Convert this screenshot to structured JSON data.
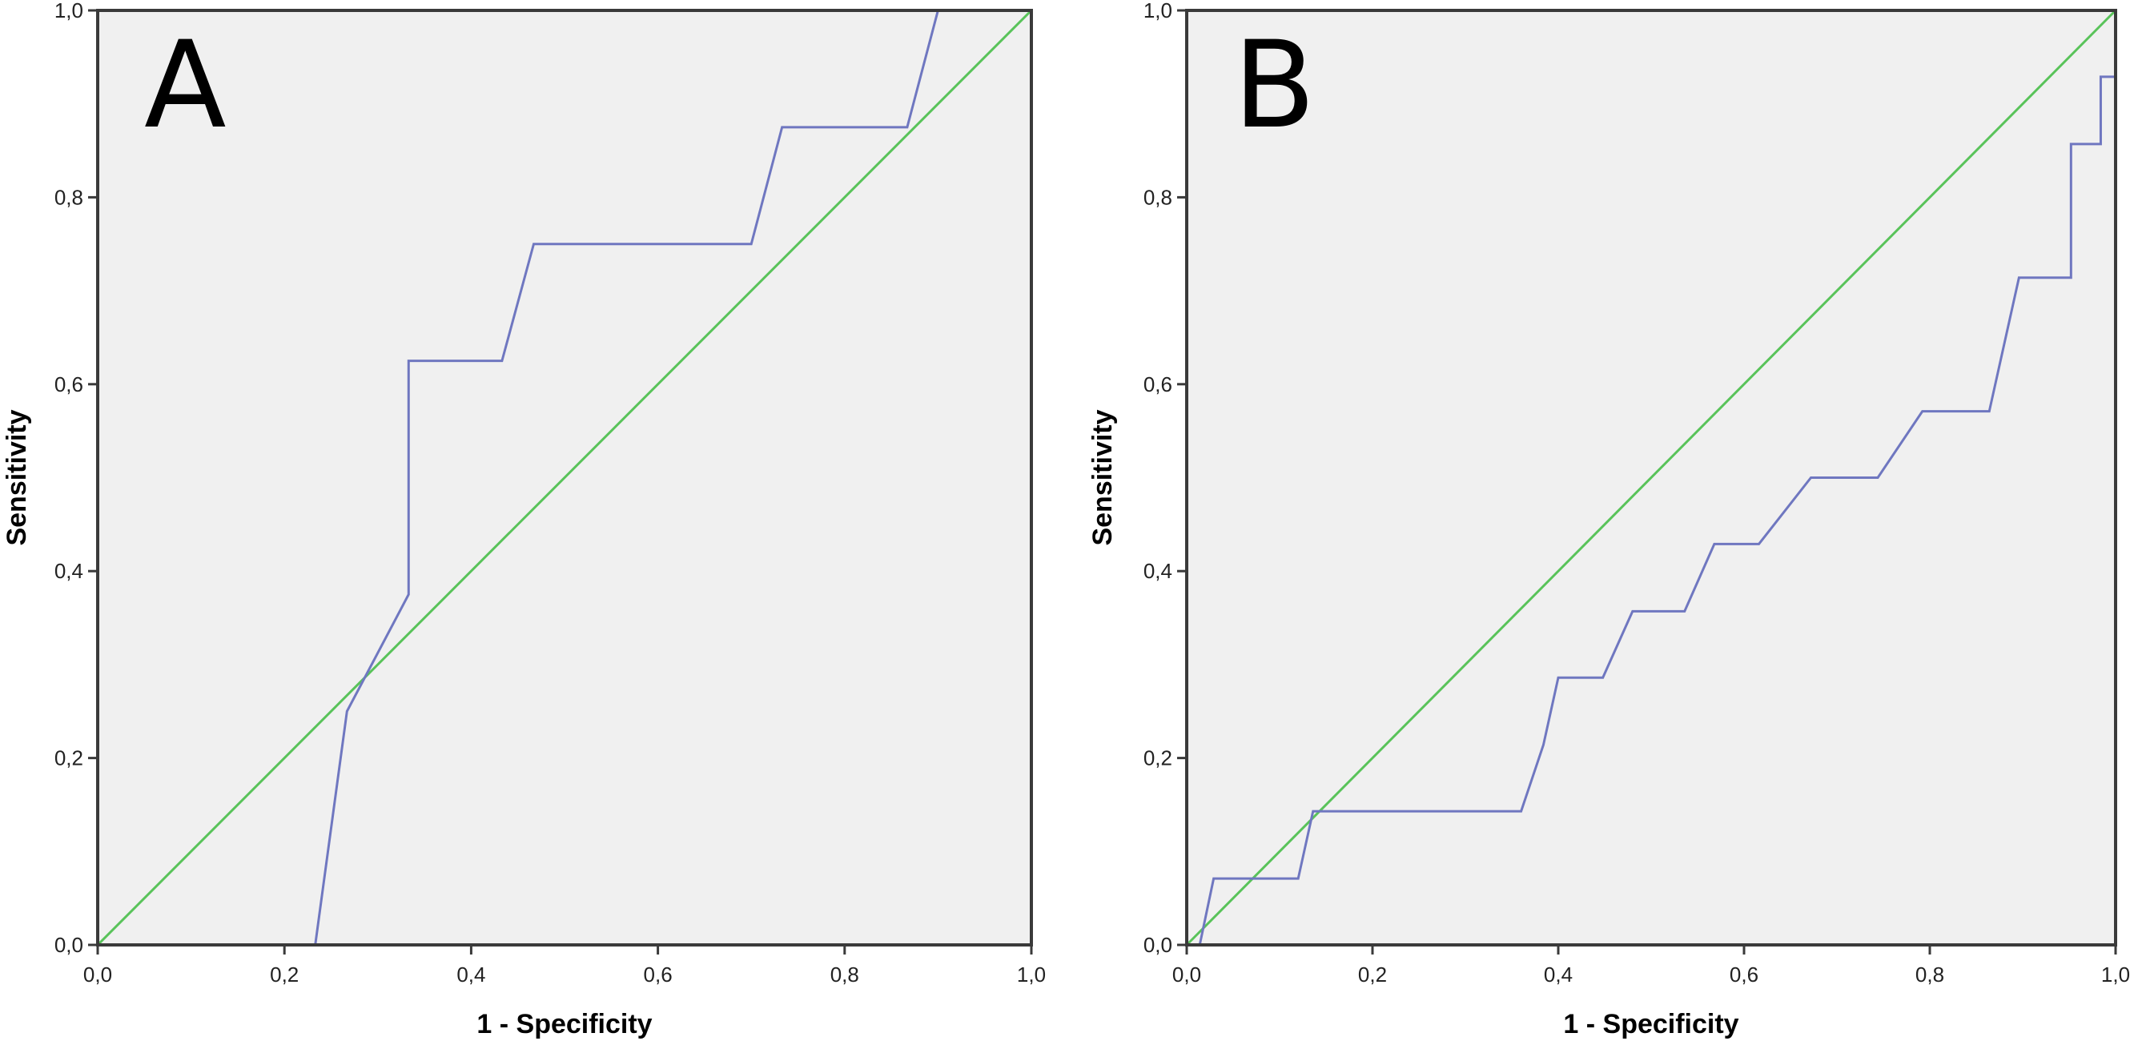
{
  "chart_data": [
    {
      "type": "line",
      "panel_label": "A",
      "xlabel": "1 - Specificity",
      "ylabel": "Sensitivity",
      "xlim": [
        0,
        1
      ],
      "ylim": [
        0,
        1
      ],
      "xticks": [
        "0,0",
        "0,2",
        "0,4",
        "0,6",
        "0,8",
        "1,0"
      ],
      "yticks": [
        "0,0",
        "0,2",
        "0,4",
        "0,6",
        "0,8",
        "1,0"
      ],
      "grid": false,
      "colors": {
        "roc": "#6f77c0",
        "reference": "#59c35a",
        "plot_bg": "#f0f0f0"
      },
      "series": [
        {
          "x": [
            0.233,
            0.267,
            0.333,
            0.333,
            0.433,
            0.467,
            0.7,
            0.733,
            0.867,
            0.9,
            1.0
          ],
          "y": [
            0.0,
            0.25,
            0.375,
            0.625,
            0.625,
            0.75,
            0.75,
            0.875,
            0.875,
            1.0,
            1.0
          ]
        },
        {
          "x": [
            0.0,
            1.0
          ],
          "y": [
            0.0,
            1.0
          ]
        }
      ]
    },
    {
      "type": "line",
      "panel_label": "B",
      "xlabel": "1 - Specificity",
      "ylabel": "Sensitivity",
      "xlim": [
        0,
        1
      ],
      "ylim": [
        0,
        1
      ],
      "xticks": [
        "0,0",
        "0,2",
        "0,4",
        "0,6",
        "0,8",
        "1,0"
      ],
      "yticks": [
        "0,0",
        "0,2",
        "0,4",
        "0,6",
        "0,8",
        "1,0"
      ],
      "grid": false,
      "colors": {
        "roc": "#6f77c0",
        "reference": "#59c35a",
        "plot_bg": "#f0f0f0"
      },
      "series": [
        {
          "x": [
            0.0,
            0.014,
            0.029,
            0.12,
            0.136,
            0.36,
            0.384,
            0.4,
            0.448,
            0.48,
            0.536,
            0.568,
            0.616,
            0.672,
            0.744,
            0.792,
            0.864,
            0.896,
            0.952,
            0.952,
            0.984,
            0.984,
            1.0
          ],
          "y": [
            0.0,
            0.0,
            0.071,
            0.071,
            0.143,
            0.143,
            0.214,
            0.286,
            0.286,
            0.357,
            0.357,
            0.429,
            0.429,
            0.5,
            0.5,
            0.571,
            0.571,
            0.714,
            0.714,
            0.857,
            0.857,
            0.929,
            0.929
          ]
        },
        {
          "x": [
            0.0,
            1.0
          ],
          "y": [
            0.0,
            1.0
          ]
        }
      ]
    }
  ]
}
